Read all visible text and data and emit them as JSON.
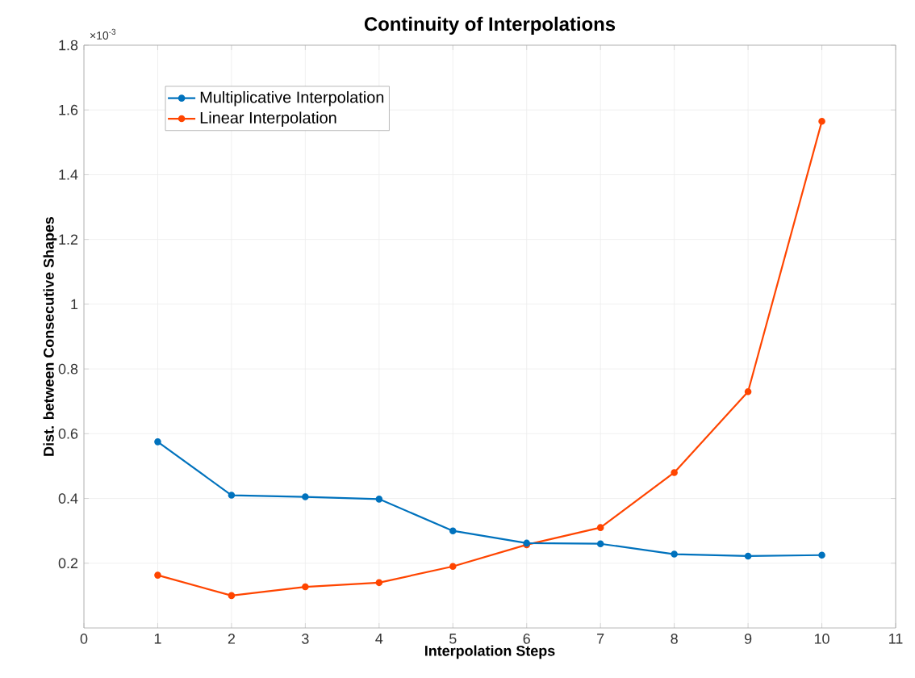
{
  "chart_data": {
    "type": "line",
    "title": "Continuity of Interpolations",
    "xlabel": "Interpolation Steps",
    "ylabel": "Dist. between Consecutive Shapes",
    "annotations": [
      "×10$^{-3}$"
    ],
    "x": [
      1,
      2,
      3,
      4,
      5,
      6,
      7,
      8,
      9,
      10
    ],
    "series": [
      {
        "name": "Multiplicative Interpolation",
        "color": "#0072bd",
        "values": [
          0.575,
          0.41,
          0.405,
          0.398,
          0.3,
          0.262,
          0.26,
          0.228,
          0.222,
          0.225
        ]
      },
      {
        "name": "Linear Interpolation",
        "color": "#ff4500",
        "values": [
          0.163,
          0.1,
          0.127,
          0.14,
          0.19,
          0.257,
          0.31,
          0.48,
          0.73,
          1.565
        ]
      }
    ],
    "xlim": [
      0,
      11
    ],
    "xticks": [
      0,
      1,
      2,
      3,
      4,
      5,
      6,
      7,
      8,
      9,
      10,
      11
    ],
    "ylim": [
      0,
      1.8
    ],
    "yticks": [
      0.2,
      0.4,
      0.6,
      0.8,
      1,
      1.2,
      1.4,
      1.6,
      1.8
    ],
    "grid": true,
    "legend": "top left",
    "marker": "circle",
    "line_style": "solid"
  }
}
